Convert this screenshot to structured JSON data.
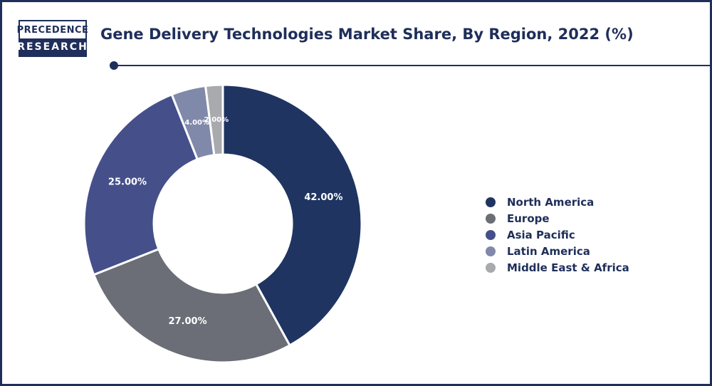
{
  "logo": {
    "line1": "PRECEDENCE",
    "line2": "RESEARCH"
  },
  "chart_data": {
    "type": "pie",
    "title": "Gene Delivery Technologies Market Share, By Region, 2022 (%)",
    "donut": true,
    "categories": [
      "North America",
      "Europe",
      "Asia Pacific",
      "Latin America",
      "Middle East & Africa"
    ],
    "values": [
      42,
      27,
      25,
      4,
      2
    ],
    "labels": [
      "42.00%",
      "27.00%",
      "25.00%",
      "4.00%",
      "2.00%"
    ],
    "colors": [
      "#1f3461",
      "#6b6e76",
      "#45508a",
      "#8089aa",
      "#a9aaad"
    ],
    "legend_position": "right"
  }
}
